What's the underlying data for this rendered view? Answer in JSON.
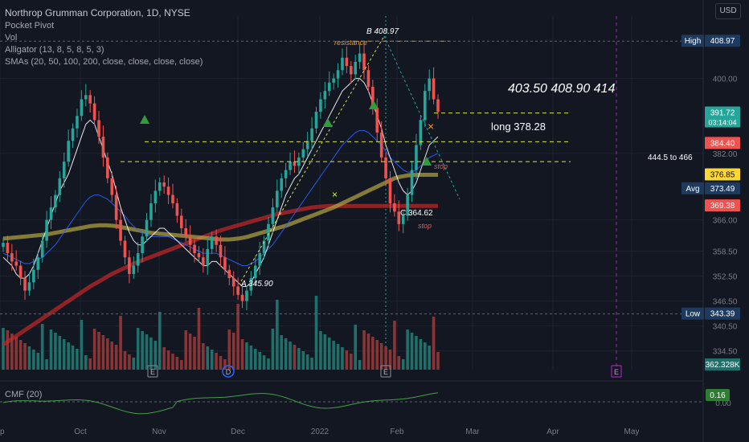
{
  "header": {
    "title": "Northrop Grumman Corporation, 1D, NYSE",
    "indicators": [
      "Pocket Pivot",
      "Vol",
      "Alligator (13, 8, 5, 8, 5, 3)",
      "SMAs (20, 50, 100, 200, close, close, close, close)"
    ],
    "currency": "USD"
  },
  "colors": {
    "background": "#131722",
    "grid": "#1f2330",
    "up": "#26a69a",
    "down": "#ef5350",
    "sma20": "#ffffff",
    "sma50": "#2962ff",
    "sma100": "#b5a642",
    "sma200": "#c62828",
    "jaw": "#3f51b5",
    "teeth": "#ef5350",
    "lips": "#26a69a",
    "annot_yellow": "#d4e157"
  },
  "chart_data": {
    "type": "candlestick",
    "timeframe": "1D",
    "x_ticks": [
      "ep",
      "Oct",
      "Nov",
      "Dec",
      "2022",
      "Feb",
      "Mar",
      "Apr",
      "May"
    ],
    "y_ticks": [
      400.0,
      382.0,
      366.0,
      358.5,
      352.5,
      346.5,
      340.5,
      334.5
    ],
    "ylim": [
      330,
      415
    ],
    "candles_ohlc_approx": {
      "start": 360.5,
      "low_A": 345.9,
      "high_B": 408.97,
      "low_C": 364.62,
      "last": 391.72,
      "closes": [
        360.5,
        358,
        356,
        355,
        352,
        349,
        351,
        354,
        357,
        361,
        366,
        369,
        372,
        376,
        380,
        385,
        388,
        391,
        395,
        396,
        394,
        390,
        386,
        381,
        376,
        372,
        366,
        361,
        357,
        353,
        355,
        358,
        362,
        366,
        370,
        373,
        375,
        374,
        372,
        370,
        367,
        364,
        362,
        360,
        358,
        357,
        355,
        359,
        362,
        360,
        357,
        354,
        352,
        350,
        348,
        346.5,
        349,
        352,
        355,
        358,
        361,
        365,
        369,
        373,
        376,
        378,
        380,
        379,
        381,
        383,
        385,
        388,
        392,
        395,
        397,
        399,
        400,
        402,
        405,
        403,
        401,
        404,
        406,
        402,
        398,
        393,
        387,
        381,
        376,
        370,
        368,
        365,
        367,
        372,
        378,
        384,
        390,
        397,
        400,
        395,
        392
      ]
    },
    "moving_averages": {
      "sma20": [
        357,
        356,
        355,
        353,
        352,
        352,
        353,
        355,
        358,
        361,
        364,
        367,
        370,
        373,
        375,
        377,
        380,
        383,
        386,
        389,
        390,
        389,
        386,
        383,
        380,
        377,
        373,
        369,
        366,
        363,
        361,
        360,
        360,
        361,
        362,
        363,
        364,
        364,
        363,
        362,
        361,
        360,
        359,
        358,
        357,
        356,
        355,
        355,
        356,
        356,
        355,
        354,
        353,
        352,
        351,
        350,
        350,
        351,
        353,
        355,
        357,
        360,
        363,
        366,
        369,
        372,
        374,
        376,
        377,
        379,
        381,
        383,
        385,
        387,
        389,
        391,
        393,
        395,
        397,
        398,
        399,
        400,
        400,
        399,
        397,
        394,
        391,
        388,
        384,
        381,
        378,
        375,
        373,
        372,
        373,
        375,
        378,
        381,
        384,
        385,
        386
      ],
      "sma50": [
        358,
        357.5,
        357,
        356.5,
        356,
        355.5,
        355.5,
        356,
        356.5,
        357,
        358,
        359,
        360,
        361.5,
        363,
        364.5,
        366,
        367.5,
        369,
        370.5,
        371.5,
        372,
        372,
        371.5,
        371,
        370,
        369,
        368,
        367,
        365.5,
        364.5,
        363.5,
        363,
        362.5,
        362,
        362,
        362,
        362,
        362,
        361.5,
        361,
        360.5,
        360,
        359.5,
        359,
        358.5,
        358,
        358,
        358,
        358,
        357.5,
        357,
        356.5,
        356,
        355.5,
        355,
        355,
        355.5,
        356,
        357,
        358,
        359,
        360,
        361.5,
        363,
        364.5,
        366,
        367.5,
        369,
        370.5,
        372,
        373.5,
        375,
        376.5,
        378,
        379.5,
        381,
        382.5,
        384,
        385,
        386,
        387,
        387.5,
        387.5,
        387,
        386,
        385,
        384,
        382.5,
        381,
        380,
        379,
        378,
        377.5,
        377.5,
        378,
        379,
        380,
        381,
        381.5,
        382
      ],
      "sma100": [
        361.5,
        361.6,
        361.7,
        361.8,
        361.9,
        362,
        362.1,
        362.2,
        362.3,
        362.4,
        362.5,
        362.7,
        362.9,
        363.1,
        363.3,
        363.5,
        363.7,
        363.9,
        364.1,
        364.3,
        364.5,
        364.6,
        364.7,
        364.7,
        364.7,
        364.6,
        364.5,
        364.3,
        364.1,
        363.9,
        363.7,
        363.5,
        363.3,
        363.1,
        362.9,
        362.8,
        362.7,
        362.6,
        362.5,
        362.4,
        362.3,
        362.2,
        362.1,
        362,
        361.9,
        361.8,
        361.7,
        361.6,
        361.5,
        361.4,
        361.3,
        361.3,
        361.3,
        361.4,
        361.5,
        361.7,
        361.9,
        362.2,
        362.5,
        362.8,
        363.1,
        363.4,
        363.7,
        364,
        364.3,
        364.6,
        365,
        365.4,
        365.8,
        366.2,
        366.6,
        367,
        367.4,
        367.8,
        368.2,
        368.6,
        369,
        369.5,
        370,
        370.5,
        371,
        371.5,
        372,
        372.5,
        373,
        373.5,
        374,
        374.5,
        375,
        375.5,
        376,
        376.3,
        376.5,
        376.7,
        376.8,
        376.85,
        376.85,
        376.85,
        376.85,
        376.85,
        376.85
      ],
      "sma200": [
        336,
        336.7,
        337.4,
        338.1,
        338.8,
        339.5,
        340.2,
        340.9,
        341.6,
        342.3,
        343,
        343.7,
        344.4,
        345.1,
        345.8,
        346.5,
        347.2,
        347.9,
        348.6,
        349.3,
        350,
        350.6,
        351.2,
        351.8,
        352.4,
        353,
        353.5,
        354,
        354.5,
        355,
        355.5,
        355.9,
        356.3,
        356.7,
        357.1,
        357.5,
        357.9,
        358.3,
        358.7,
        359.1,
        359.5,
        359.9,
        360.3,
        360.7,
        361.1,
        361.5,
        361.9,
        362.3,
        362.7,
        363.1,
        363.5,
        363.8,
        364.1,
        364.4,
        364.7,
        365,
        365.3,
        365.6,
        365.9,
        366.2,
        366.5,
        366.8,
        367.1,
        367.4,
        367.6,
        367.8,
        368,
        368.2,
        368.4,
        368.6,
        368.8,
        369,
        369.1,
        369.2,
        369.3,
        369.35,
        369.38,
        369.38,
        369.38,
        369.38,
        369.38,
        369.38,
        369.38,
        369.38,
        369.38,
        369.38,
        369.38,
        369.38,
        369.38,
        369.38,
        369.38,
        369.38,
        369.38,
        369.38,
        369.38,
        369.38,
        369.38,
        369.38,
        369.38,
        369.38,
        369.38
      ]
    },
    "price_labels": [
      {
        "label": "High",
        "value": "408.97",
        "y": 408.97,
        "color": "#1e3a5f"
      },
      {
        "label": "",
        "value": "391.72",
        "y": 391.72,
        "color": "#26a69a",
        "sub": "03:14:04"
      },
      {
        "label": "",
        "value": "384.40",
        "y": 384.4,
        "color": "#ef5350"
      },
      {
        "label": "",
        "value": "376.85",
        "y": 376.85,
        "color": "#fdd835"
      },
      {
        "label": "Avg",
        "value": "373.49",
        "y": 373.49,
        "color": "#1e3a5f"
      },
      {
        "label": "",
        "value": "369.38",
        "y": 369.38,
        "color": "#ef5350"
      },
      {
        "label": "Low",
        "value": "343.39",
        "y": 343.39,
        "color": "#1e3a5f"
      }
    ],
    "annotations": {
      "point_B": "B 408.97",
      "point_A": "A 345.90",
      "point_C": "C 364.62",
      "resistance": "resistance",
      "long_entry": "long 378.28",
      "targets": "403.50   408.90   414",
      "target_range": "444.5 to 466",
      "stop_1": "stop",
      "stop_2": "stop"
    },
    "horizontal_levels": [
      {
        "y": 408.97,
        "color": "#ff9800",
        "style": "dashed"
      },
      {
        "y": 391.7,
        "color": "#d4e157",
        "style": "dashed"
      },
      {
        "y": 384.8,
        "color": "#d4e157",
        "style": "dashed"
      },
      {
        "y": 380.0,
        "color": "#d4e157",
        "style": "dashed"
      }
    ],
    "volume": {
      "last_label": "362.328K"
    },
    "cmf": {
      "label": "CMF (20)",
      "value": "0.16",
      "zero": "0.00"
    },
    "earnings_markers": [
      "E",
      "D",
      "E",
      "E"
    ]
  }
}
